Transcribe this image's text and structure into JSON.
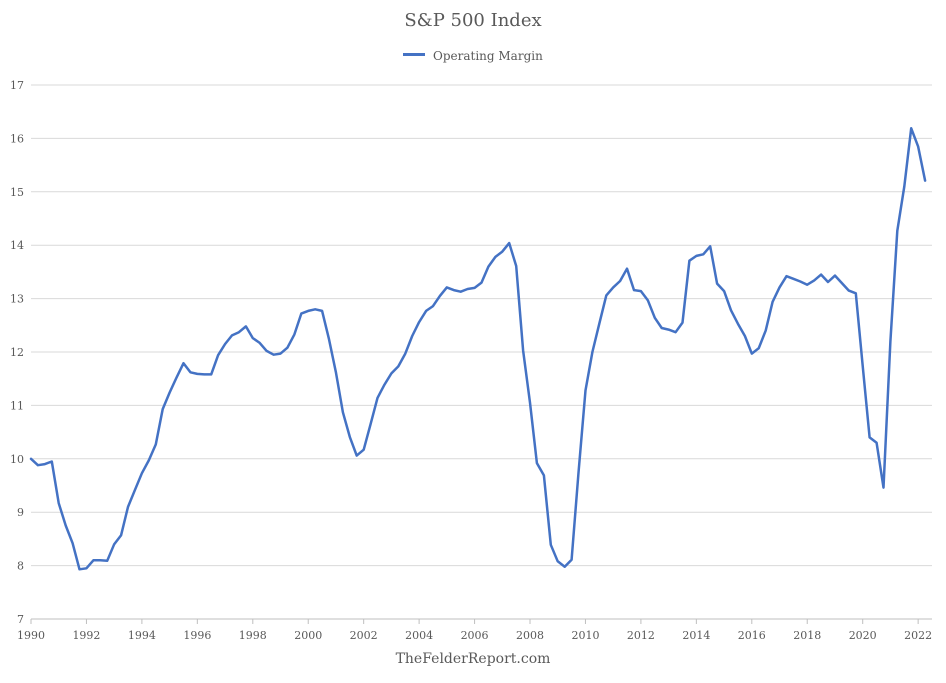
{
  "chart_data": {
    "type": "line",
    "title": "S&P 500 Index",
    "xlabel": "",
    "ylabel": "",
    "xlim": [
      1990,
      2022.5
    ],
    "ylim": [
      7,
      17
    ],
    "grid": true,
    "legend_position": "top-center",
    "y_ticks": [
      "7",
      "8",
      "9",
      "10",
      "11",
      "12",
      "13",
      "14",
      "15",
      "16",
      "17"
    ],
    "x_ticks": [
      "1990",
      "1992",
      "1994",
      "1996",
      "1998",
      "2000",
      "2002",
      "2004",
      "2006",
      "2008",
      "2010",
      "2012",
      "2014",
      "2016",
      "2018",
      "2020",
      "2022"
    ],
    "series": [
      {
        "name": "Operating Margin",
        "color": "#4472c4",
        "x": [
          1990.0,
          1990.25,
          1990.5,
          1990.75,
          1991.0,
          1991.25,
          1991.5,
          1991.75,
          1992.0,
          1992.25,
          1992.5,
          1992.75,
          1993.0,
          1993.25,
          1993.5,
          1993.75,
          1994.0,
          1994.25,
          1994.5,
          1994.75,
          1995.0,
          1995.25,
          1995.5,
          1995.75,
          1996.0,
          1996.25,
          1996.5,
          1996.75,
          1997.0,
          1997.25,
          1997.5,
          1997.75,
          1998.0,
          1998.25,
          1998.5,
          1998.75,
          1999.0,
          1999.25,
          1999.5,
          1999.75,
          2000.0,
          2000.25,
          2000.5,
          2000.75,
          2001.0,
          2001.25,
          2001.5,
          2001.75,
          2002.0,
          2002.25,
          2002.5,
          2002.75,
          2003.0,
          2003.25,
          2003.5,
          2003.75,
          2004.0,
          2004.25,
          2004.5,
          2004.75,
          2005.0,
          2005.25,
          2005.5,
          2005.75,
          2006.0,
          2006.25,
          2006.5,
          2006.75,
          2007.0,
          2007.25,
          2007.5,
          2007.75,
          2008.0,
          2008.25,
          2008.5,
          2008.75,
          2009.0,
          2009.25,
          2009.5,
          2009.75,
          2010.0,
          2010.25,
          2010.5,
          2010.75,
          2011.0,
          2011.25,
          2011.5,
          2011.75,
          2012.0,
          2012.25,
          2012.5,
          2012.75,
          2013.0,
          2013.25,
          2013.5,
          2013.75,
          2014.0,
          2014.25,
          2014.5,
          2014.75,
          2015.0,
          2015.25,
          2015.5,
          2015.75,
          2016.0,
          2016.25,
          2016.5,
          2016.75,
          2017.0,
          2017.25,
          2017.5,
          2017.75,
          2018.0,
          2018.25,
          2018.5,
          2018.75,
          2019.0,
          2019.25,
          2019.5,
          2019.75,
          2020.0,
          2020.25,
          2020.5,
          2020.75,
          2021.0,
          2021.25,
          2021.5,
          2021.75,
          2022.0,
          2022.25
        ],
        "values": [
          10.0,
          9.88,
          9.9,
          9.95,
          9.17,
          8.75,
          8.42,
          7.93,
          7.95,
          8.1,
          8.1,
          8.09,
          8.4,
          8.57,
          9.1,
          9.42,
          9.73,
          9.97,
          10.27,
          10.93,
          11.24,
          11.52,
          11.79,
          11.62,
          11.59,
          11.58,
          11.58,
          11.94,
          12.15,
          12.31,
          12.37,
          12.48,
          12.26,
          12.17,
          12.02,
          11.95,
          11.97,
          12.08,
          12.33,
          12.72,
          12.77,
          12.8,
          12.77,
          12.24,
          11.61,
          10.87,
          10.41,
          10.06,
          10.17,
          10.65,
          11.14,
          11.39,
          11.6,
          11.73,
          11.97,
          12.3,
          12.56,
          12.77,
          12.86,
          13.05,
          13.21,
          13.16,
          13.13,
          13.18,
          13.2,
          13.3,
          13.6,
          13.78,
          13.88,
          14.04,
          13.61,
          12.03,
          11.05,
          9.92,
          9.69,
          8.39,
          8.08,
          7.98,
          8.11,
          9.74,
          11.28,
          12.0,
          12.53,
          13.06,
          13.21,
          13.33,
          13.56,
          13.16,
          13.14,
          12.97,
          12.64,
          12.45,
          12.42,
          12.37,
          12.55,
          13.71,
          13.8,
          13.83,
          13.98,
          13.28,
          13.14,
          12.78,
          12.53,
          12.3,
          11.97,
          12.07,
          12.4,
          12.94,
          13.21,
          13.42,
          13.37,
          13.32,
          13.26,
          13.34,
          13.45,
          13.31,
          13.43,
          13.29,
          13.15,
          13.1,
          11.74,
          10.4,
          10.3,
          9.46,
          12.2,
          14.27,
          15.1,
          16.19,
          15.85,
          15.21
        ]
      }
    ],
    "source_text": "TheFelderReport.com"
  }
}
